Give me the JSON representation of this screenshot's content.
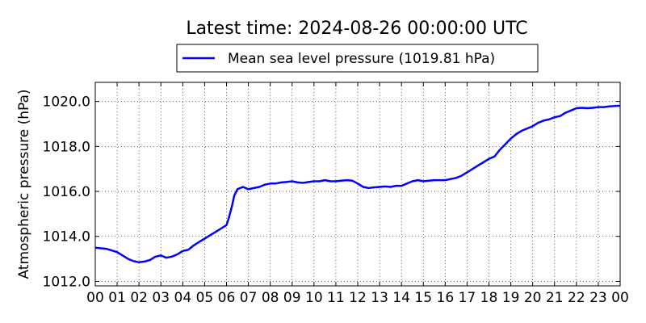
{
  "chart_data": {
    "type": "line",
    "title": "Latest time: 2024-08-26 00:00:00 UTC",
    "xlabel": "",
    "ylabel": "Atmospheric pressure (hPa)",
    "x_tick_labels": [
      "00",
      "01",
      "02",
      "03",
      "04",
      "05",
      "06",
      "07",
      "08",
      "09",
      "10",
      "11",
      "12",
      "13",
      "14",
      "15",
      "16",
      "17",
      "18",
      "19",
      "20",
      "21",
      "22",
      "23",
      "00"
    ],
    "y_ticks": [
      1012.0,
      1014.0,
      1016.0,
      1018.0,
      1020.0
    ],
    "y_tick_labels": [
      "1012.0",
      "1014.0",
      "1016.0",
      "1018.0",
      "1020.0"
    ],
    "xlim": [
      0,
      24
    ],
    "ylim": [
      1011.8,
      1020.85
    ],
    "grid": true,
    "legend_placement": "top-center",
    "series": [
      {
        "name": "Mean sea level pressure (1019.81 hPa)",
        "color": "#0000ff",
        "x": [
          0,
          0.5,
          1,
          1.25,
          1.5,
          1.75,
          2,
          2.25,
          2.5,
          2.75,
          3,
          3.25,
          3.5,
          3.75,
          4,
          4.25,
          4.5,
          4.75,
          5,
          5.25,
          5.5,
          5.75,
          6,
          6.1,
          6.25,
          6.35,
          6.5,
          6.75,
          7,
          7.25,
          7.5,
          7.75,
          8,
          8.25,
          8.5,
          8.75,
          9,
          9.25,
          9.5,
          9.75,
          10,
          10.25,
          10.5,
          10.75,
          11,
          11.25,
          11.5,
          11.75,
          12,
          12.25,
          12.5,
          12.75,
          13,
          13.25,
          13.5,
          13.75,
          14,
          14.25,
          14.5,
          14.75,
          15,
          15.25,
          15.5,
          15.75,
          16,
          16.25,
          16.5,
          16.75,
          17,
          17.25,
          17.5,
          17.75,
          18,
          18.25,
          18.5,
          18.75,
          19,
          19.25,
          19.5,
          19.75,
          20,
          20.25,
          20.5,
          20.75,
          21,
          21.25,
          21.5,
          21.75,
          22,
          22.25,
          22.5,
          22.75,
          23,
          23.25,
          23.5,
          23.75,
          24
        ],
        "values": [
          1013.5,
          1013.45,
          1013.3,
          1013.15,
          1013.0,
          1012.9,
          1012.85,
          1012.88,
          1012.95,
          1013.1,
          1013.15,
          1013.05,
          1013.1,
          1013.2,
          1013.35,
          1013.4,
          1013.6,
          1013.75,
          1013.9,
          1014.05,
          1014.2,
          1014.35,
          1014.5,
          1014.8,
          1015.35,
          1015.8,
          1016.1,
          1016.2,
          1016.1,
          1016.15,
          1016.2,
          1016.3,
          1016.35,
          1016.35,
          1016.4,
          1016.42,
          1016.45,
          1016.4,
          1016.38,
          1016.42,
          1016.45,
          1016.45,
          1016.5,
          1016.45,
          1016.45,
          1016.48,
          1016.5,
          1016.48,
          1016.35,
          1016.2,
          1016.15,
          1016.18,
          1016.2,
          1016.22,
          1016.2,
          1016.25,
          1016.25,
          1016.35,
          1016.45,
          1016.5,
          1016.45,
          1016.48,
          1016.5,
          1016.5,
          1016.5,
          1016.55,
          1016.6,
          1016.7,
          1016.85,
          1017.0,
          1017.15,
          1017.3,
          1017.45,
          1017.55,
          1017.85,
          1018.1,
          1018.35,
          1018.55,
          1018.7,
          1018.8,
          1018.9,
          1019.05,
          1019.15,
          1019.2,
          1019.3,
          1019.35,
          1019.5,
          1019.6,
          1019.7,
          1019.72,
          1019.7,
          1019.72,
          1019.75,
          1019.75,
          1019.78,
          1019.8,
          1019.81
        ]
      }
    ]
  }
}
